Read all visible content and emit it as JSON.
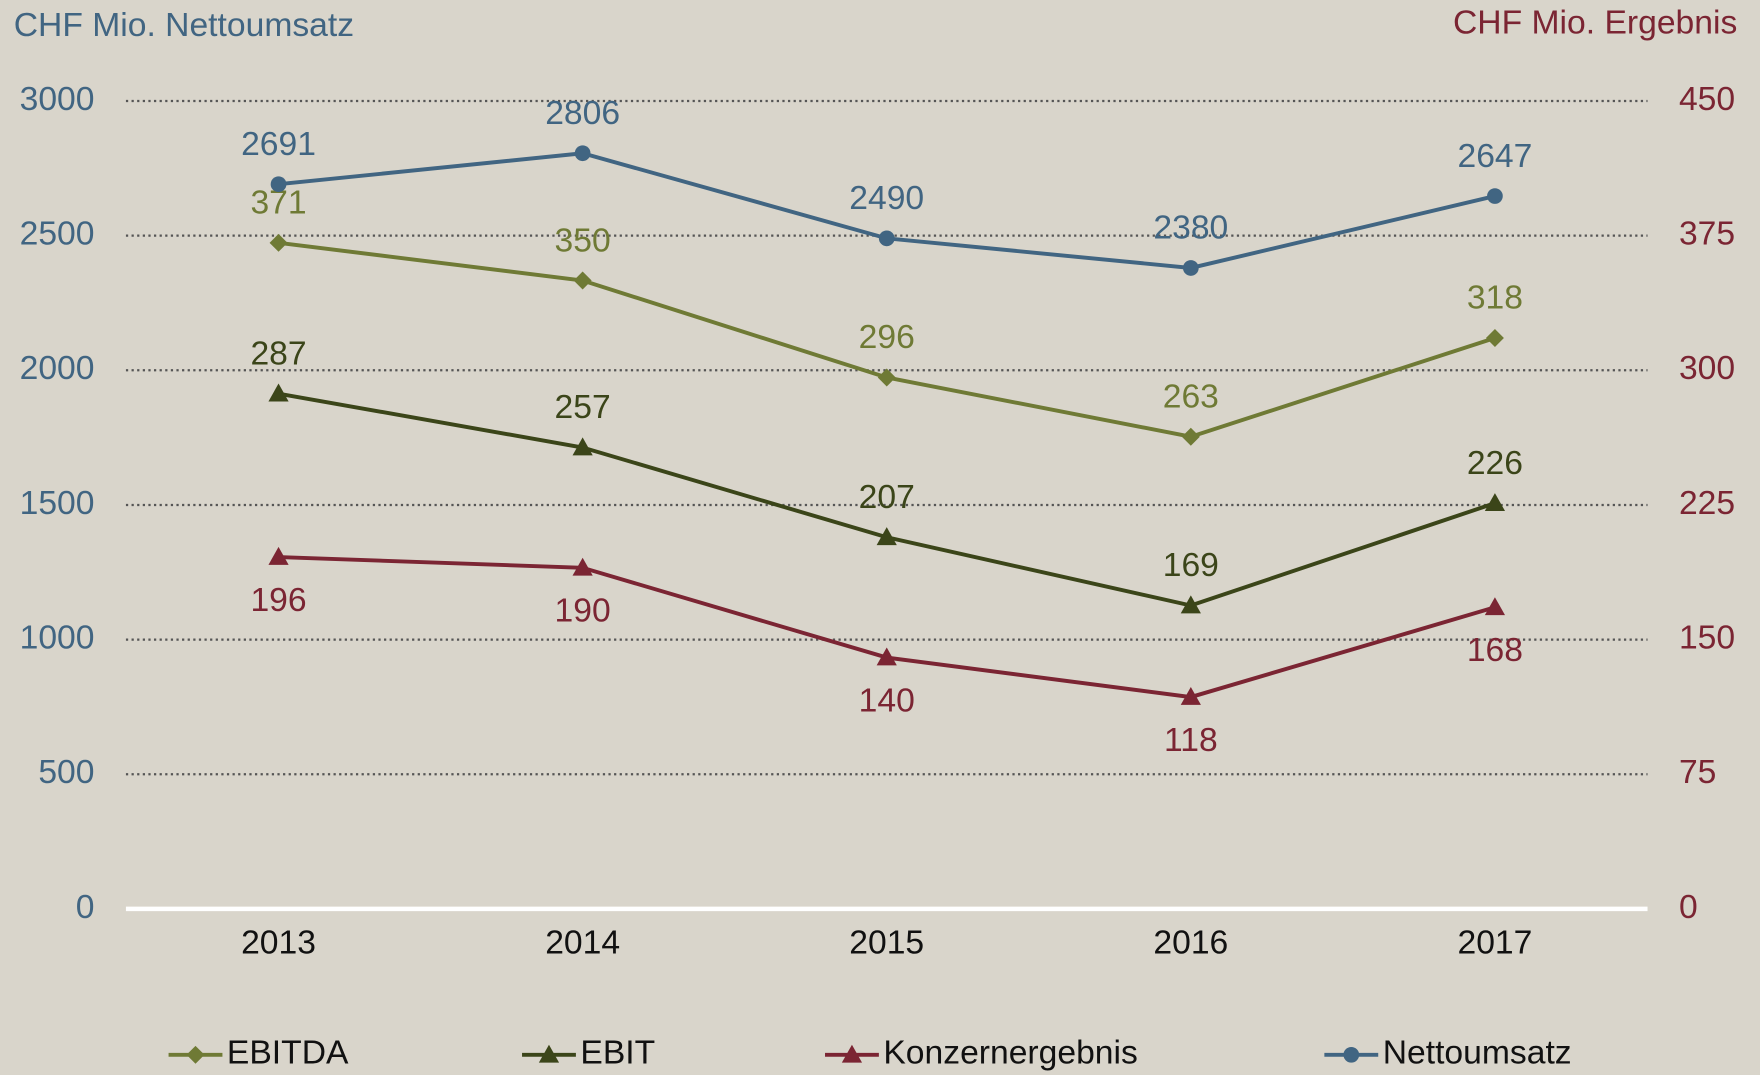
{
  "chart_data": {
    "type": "line",
    "y_axis_label": "CHF Mio. Nettoumsatz",
    "y2_axis_label": "CHF Mio. Ergebnis",
    "categories": [
      "2013",
      "2014",
      "2015",
      "2016",
      "2017"
    ],
    "ylim": [
      0,
      3000
    ],
    "yticks": [
      0,
      500,
      1000,
      1500,
      2000,
      2500,
      3000
    ],
    "y2lim": [
      0,
      450
    ],
    "y2ticks": [
      0,
      75,
      150,
      225,
      300,
      375,
      450
    ],
    "grid": true,
    "legend": "bottom",
    "series": [
      {
        "name": "EBITDA",
        "color": "#6f7a35",
        "marker": "diamond",
        "axis": "y2",
        "label_position": "above",
        "values": [
          371,
          350,
          296,
          263,
          318
        ]
      },
      {
        "name": "EBIT",
        "color": "#3b4519",
        "marker": "triangle",
        "axis": "y2",
        "label_position": "above",
        "values": [
          287,
          257,
          207,
          169,
          226
        ]
      },
      {
        "name": "Konzernergebnis",
        "color": "#7b2533",
        "marker": "triangle",
        "axis": "y2",
        "label_position": "below",
        "values": [
          196,
          190,
          140,
          118,
          168
        ]
      },
      {
        "name": "Nettoumsatz",
        "color": "#416582",
        "marker": "circle",
        "axis": "y",
        "label_position": "above",
        "values": [
          2691,
          2806,
          2490,
          2380,
          2647
        ]
      }
    ]
  }
}
